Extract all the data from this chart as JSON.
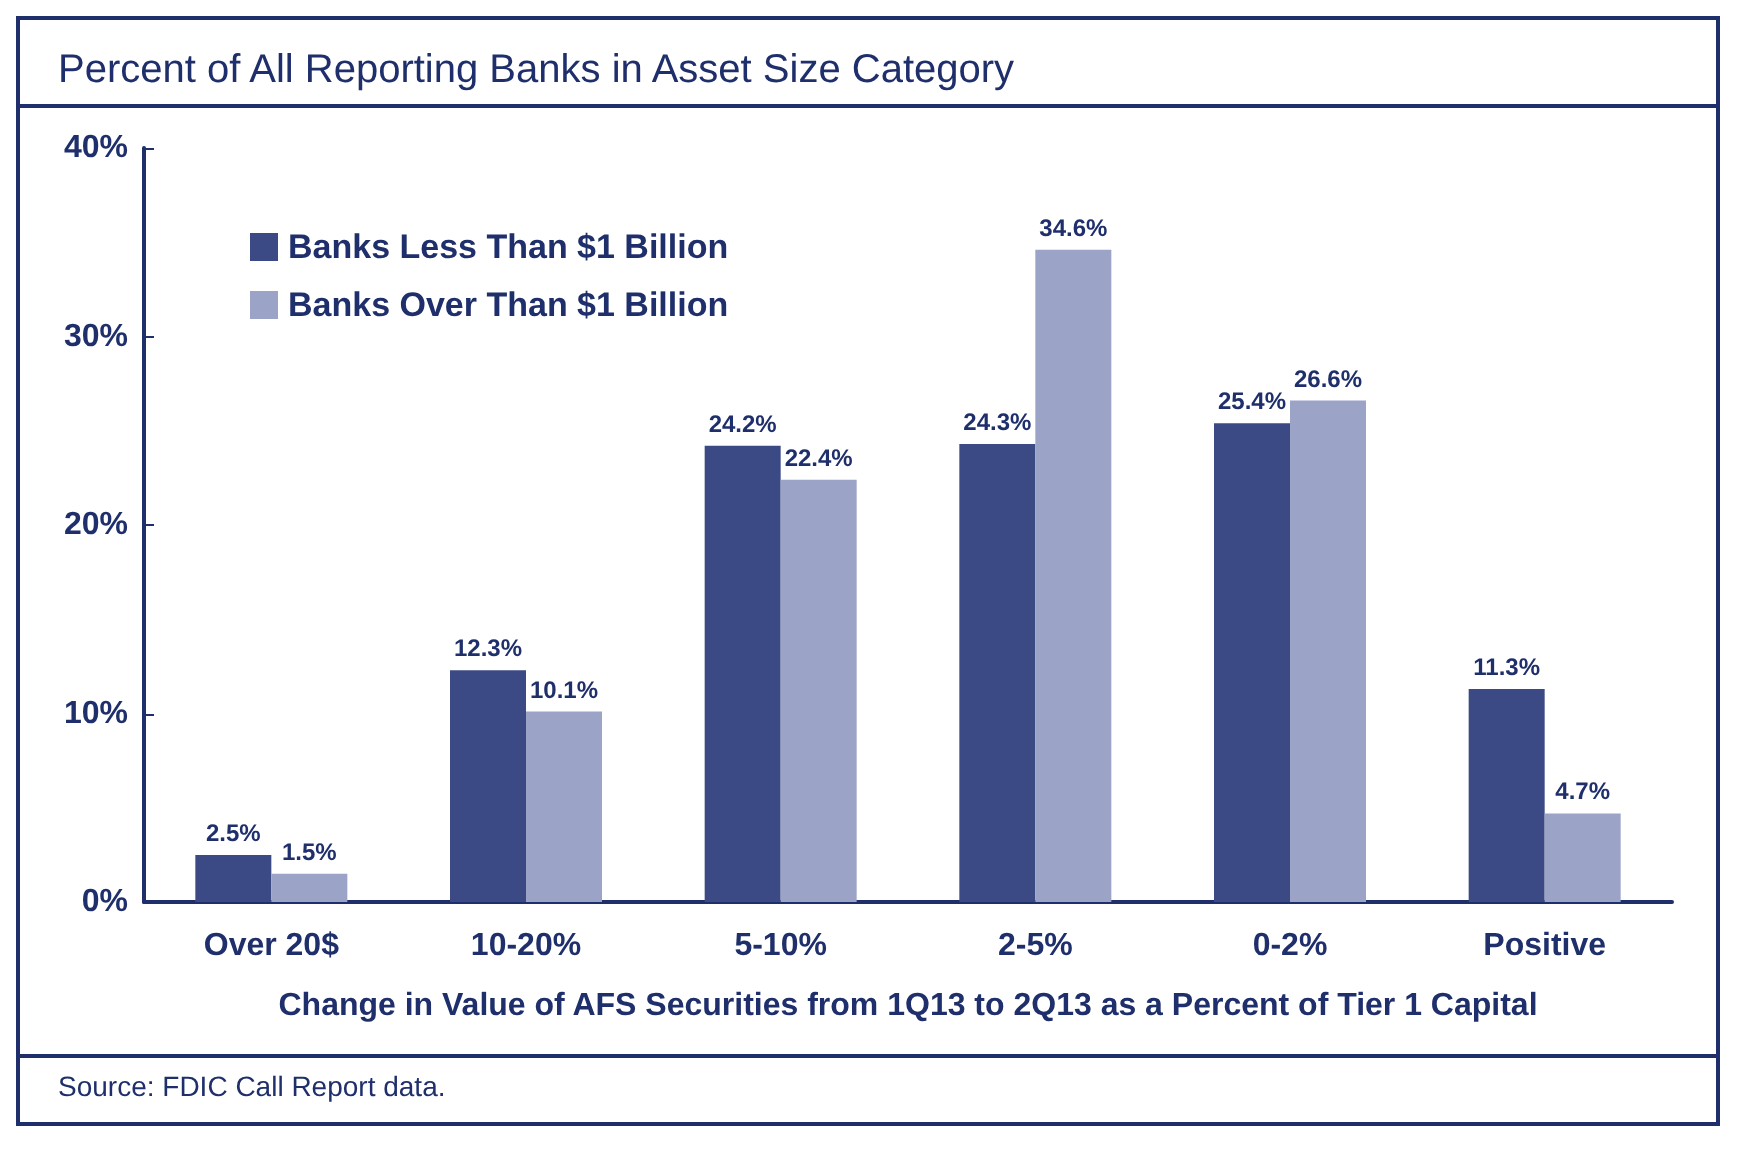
{
  "chart_data": {
    "type": "bar",
    "title": "Percent of All Reporting Banks in Asset Size Category",
    "xlabel": "Change in Value of AFS Securities from 1Q13 to 2Q13 as a Percent of Tier 1 Capital",
    "categories": [
      "Over 20$",
      "10-20%",
      "5-10%",
      "2-5%",
      "0-2%",
      "Positive"
    ],
    "series": [
      {
        "name": "Banks Less Than $1 Billion",
        "color": "#3b4a84",
        "values": [
          2.5,
          12.3,
          24.2,
          24.3,
          25.4,
          11.3
        ],
        "value_labels": [
          "2.5%",
          "12.3%",
          "24.2%",
          "24.3%",
          "25.4%",
          "11.3%"
        ]
      },
      {
        "name": "Banks Over Than $1 Billion",
        "color": "#9ba3c7",
        "values": [
          1.5,
          10.1,
          22.4,
          34.6,
          26.6,
          4.7
        ],
        "value_labels": [
          "1.5%",
          "10.1%",
          "22.4%",
          "34.6%",
          "26.6%",
          "4.7%"
        ]
      }
    ],
    "ylim": [
      0,
      40
    ],
    "yticks": [
      {
        "value": 0,
        "label": "0%"
      },
      {
        "value": 10,
        "label": "10%"
      },
      {
        "value": 20,
        "label": "20%"
      },
      {
        "value": 30,
        "label": "30%"
      },
      {
        "value": 40,
        "label": "40%"
      }
    ],
    "grid": false,
    "legend": "top left",
    "annotations": [
      "Source: FDIC Call Report data."
    ]
  }
}
